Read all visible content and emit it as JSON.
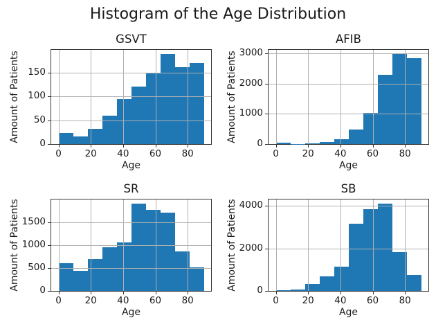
{
  "figure": {
    "suptitle": "Histogram of the Age Distribution",
    "background_color": "#ffffff",
    "bar_color": "#1f77b4",
    "grid_color": "#b0b0b0",
    "spine_color": "#333333",
    "grid": true
  },
  "chart_data": [
    {
      "type": "bar",
      "title": "GSVT",
      "xlabel": "Age",
      "ylabel": "Amount of Patients",
      "bin_edges": [
        0,
        9,
        18,
        27,
        36,
        45,
        54,
        63,
        72,
        81,
        90
      ],
      "values": [
        23,
        16,
        32,
        60,
        95,
        121,
        149,
        188,
        161,
        170
      ],
      "xticks": [
        0,
        20,
        40,
        60,
        80
      ],
      "yticks": [
        0,
        50,
        100,
        150
      ],
      "xlim": [
        -4.5,
        94.5
      ],
      "ylim": [
        0,
        197.4
      ],
      "grid": true,
      "legend": "none"
    },
    {
      "type": "bar",
      "title": "AFIB",
      "xlabel": "Age",
      "ylabel": "Amount of Patients",
      "bin_edges": [
        0,
        9,
        18,
        27,
        36,
        45,
        54,
        63,
        72,
        81,
        90
      ],
      "values": [
        35,
        8,
        25,
        60,
        160,
        470,
        1020,
        2290,
        2965,
        2830
      ],
      "xticks": [
        0,
        20,
        40,
        60,
        80
      ],
      "yticks": [
        0,
        1000,
        2000,
        3000
      ],
      "xlim": [
        -4.5,
        94.5
      ],
      "ylim": [
        0,
        3113
      ],
      "grid": true,
      "legend": "none"
    },
    {
      "type": "bar",
      "title": "SR",
      "xlabel": "Age",
      "ylabel": "Amount of Patients",
      "bin_edges": [
        0,
        9,
        18,
        27,
        36,
        45,
        54,
        63,
        72,
        81,
        90
      ],
      "values": [
        600,
        440,
        700,
        960,
        1060,
        1905,
        1770,
        1715,
        870,
        520
      ],
      "xticks": [
        0,
        20,
        40,
        60,
        80
      ],
      "yticks": [
        0,
        500,
        1000,
        1500
      ],
      "xlim": [
        -4.5,
        94.5
      ],
      "ylim": [
        0,
        2000
      ],
      "grid": true,
      "legend": "none"
    },
    {
      "type": "bar",
      "title": "SB",
      "xlabel": "Age",
      "ylabel": "Amount of Patients",
      "bin_edges": [
        0,
        9,
        18,
        27,
        36,
        45,
        54,
        63,
        72,
        81,
        90
      ],
      "values": [
        45,
        80,
        330,
        680,
        1140,
        3150,
        3850,
        4100,
        1830,
        760
      ],
      "xticks": [
        0,
        20,
        40,
        60,
        80
      ],
      "yticks": [
        0,
        2000,
        4000
      ],
      "xlim": [
        -4.5,
        94.5
      ],
      "ylim": [
        0,
        4305
      ],
      "grid": true,
      "legend": "none"
    }
  ]
}
